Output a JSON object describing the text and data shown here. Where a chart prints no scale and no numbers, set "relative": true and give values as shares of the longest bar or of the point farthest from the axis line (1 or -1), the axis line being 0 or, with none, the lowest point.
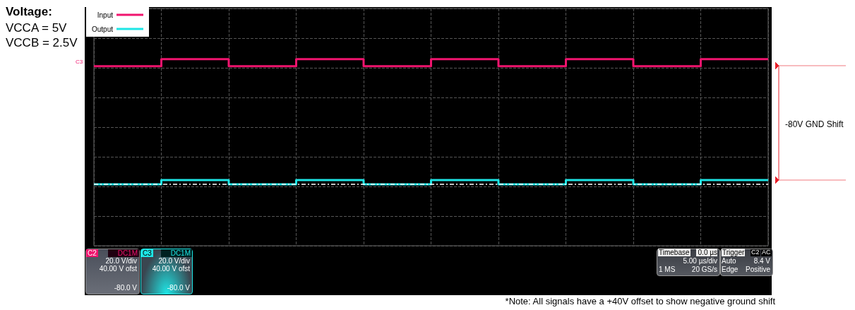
{
  "chart_data": {
    "type": "step",
    "title": "Voltage:",
    "subtitle": "VCCA = 5V\nVCCB = 2.5V",
    "categories": [
      null,
      null,
      null,
      null,
      null,
      null,
      null,
      null,
      null,
      null,
      null
    ],
    "relative": true,
    "series": [
      {
        "name": "Input",
        "color": "#f0146e",
        "values": [
          0.944,
          1,
          0.944,
          1,
          0.944,
          1,
          0.944,
          1,
          0.944,
          1,
          1
        ]
      },
      {
        "name": "Output",
        "color": "#1ee6e6",
        "values": [
          0,
          0.034,
          0,
          0.034,
          0,
          0.034,
          0,
          0.034,
          0,
          0.034,
          0.034
        ]
      }
    ],
    "ref_lines": [
      {
        "axis": "y",
        "value": 0,
        "label": null,
        "color": "#ffffff",
        "line_style": "dashed"
      }
    ],
    "grid": true,
    "legend": "top left",
    "marker": "none",
    "line_style": "solid",
    "annotations": [
      "C3",
      "-80V GND Shift",
      "*Note: All signals have a +40V offset to show negative ground shift",
      "C2",
      "DC1M",
      "20.0 V/div",
      "40.00 V ofst",
      "-80.0 V",
      "C3",
      "DC1M",
      "20.0 V/div",
      "40.00 V ofst",
      "-80.0 V",
      "Timebase",
      "0.0 µs",
      "5.00 µs/div",
      "1 MS",
      "20 GS/s",
      "Trigger",
      "C2",
      "AC",
      "Auto",
      "8.4 V",
      "Edge",
      "Positive"
    ]
  }
}
